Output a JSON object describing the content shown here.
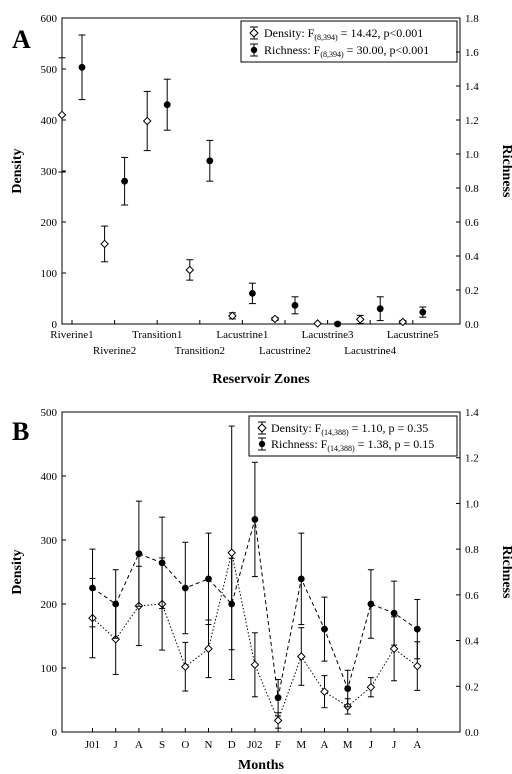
{
  "chart_data": [
    {
      "panel": "A",
      "type": "scatter",
      "xlabel": "Reservoir Zones",
      "ylabel": "Density",
      "y2label": "Richness",
      "ylim": [
        0,
        600
      ],
      "y2lim": [
        0,
        1.8
      ],
      "yticks": [
        "0",
        "100",
        "200",
        "300",
        "400",
        "500",
        "600"
      ],
      "y2ticks": [
        "0.0",
        "0.2",
        "0.4",
        "0.6",
        "0.8",
        "1.0",
        "1.2",
        "1.4",
        "1.6",
        "1.8"
      ],
      "categories": [
        "Riverine1",
        "Riverine2",
        "Transition1",
        "Transition2",
        "Lacustrine1",
        "Lacustrine2",
        "Lacustrine3",
        "Lacustrine4",
        "Lacustrine5"
      ],
      "legend_position": "top-right",
      "series": [
        {
          "name": "Density",
          "legend_main": "Density: F",
          "legend_sub": "(8,394)",
          "legend_rest": " = 14.42, p<0.001",
          "axis": "left",
          "marker": "open-diamond",
          "values": [
            410,
            157,
            398,
            106,
            16,
            10,
            1,
            9,
            4
          ],
          "err": [
            112,
            35,
            58,
            20,
            6,
            3,
            1,
            8,
            3
          ]
        },
        {
          "name": "Richness",
          "legend_main": "Richness: F",
          "legend_sub": "(8,394)",
          "legend_rest": " = 30.00, p<0.001",
          "axis": "right",
          "marker": "filled-circle",
          "values": [
            1.51,
            0.84,
            1.29,
            0.96,
            0.18,
            0.11,
            0.0,
            0.09,
            0.07
          ],
          "err": [
            0.19,
            0.14,
            0.15,
            0.12,
            0.06,
            0.05,
            0.01,
            0.07,
            0.03
          ]
        }
      ]
    },
    {
      "panel": "B",
      "type": "line",
      "xlabel": "Months",
      "ylabel": "Density",
      "y2label": "Richness",
      "ylim": [
        0,
        500
      ],
      "y2lim": [
        0,
        1.4
      ],
      "yticks": [
        "0",
        "100",
        "200",
        "300",
        "400",
        "500"
      ],
      "y2ticks": [
        "0.0",
        "0.2",
        "0.4",
        "0.6",
        "0.8",
        "1.0",
        "1.2",
        "1.4"
      ],
      "categories": [
        "J01",
        "J",
        "A",
        "S",
        "O",
        "N",
        "D",
        "J02",
        "F",
        "M",
        "A",
        "M",
        "J",
        "J",
        "A"
      ],
      "legend_position": "top-right",
      "series": [
        {
          "name": "Density",
          "legend_main": "Density: F",
          "legend_sub": "(14,388)",
          "legend_rest": " = 1.10, p = 0.35",
          "axis": "left",
          "marker": "open-diamond",
          "line": "dotted",
          "values": [
            178,
            145,
            197,
            200,
            102,
            130,
            280,
            105,
            18,
            118,
            63,
            40,
            70,
            130,
            103
          ],
          "err": [
            62,
            55,
            62,
            72,
            38,
            45,
            198,
            50,
            12,
            45,
            25,
            12,
            15,
            50,
            38
          ]
        },
        {
          "name": "Richness",
          "legend_main": "Richness: F",
          "legend_sub": "(14,388)",
          "legend_rest": " = 1.38, p = 0.15",
          "axis": "right",
          "marker": "filled-circle",
          "line": "dashed",
          "values": [
            0.63,
            0.56,
            0.78,
            0.74,
            0.63,
            0.67,
            0.56,
            0.93,
            0.15,
            0.67,
            0.45,
            0.19,
            0.56,
            0.52,
            0.45
          ],
          "err": [
            0.17,
            0.15,
            0.23,
            0.2,
            0.2,
            0.2,
            0.2,
            0.25,
            0.08,
            0.2,
            0.14,
            0.08,
            0.15,
            0.14,
            0.13
          ]
        }
      ]
    }
  ]
}
